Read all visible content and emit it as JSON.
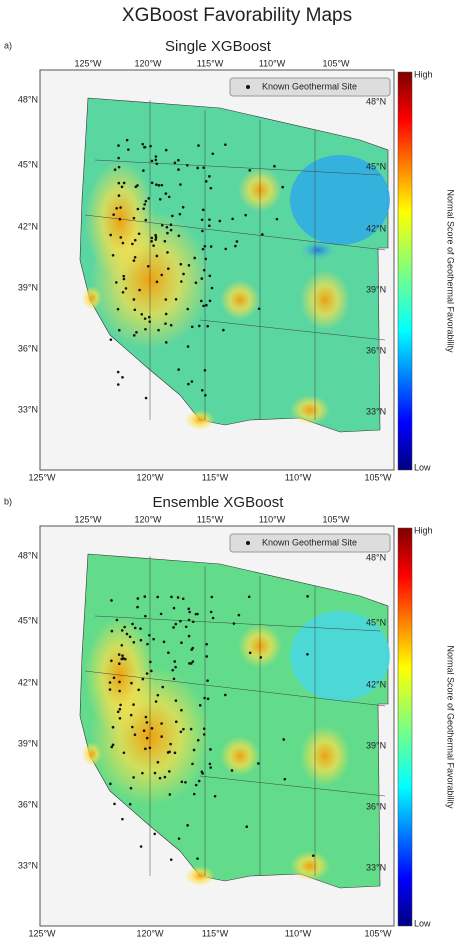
{
  "title": "XGBoost Favorability Maps",
  "panels": [
    {
      "label": "a)",
      "title": "Single XGBoost",
      "legend": "Known Geothermal Site",
      "colorbar": {
        "high": "High",
        "low": "Low",
        "title": "Normal Score of Geothermal Favorability"
      },
      "top_ticks": [
        "125°W",
        "120°W",
        "115°W",
        "110°W",
        "105°W"
      ],
      "bottom_ticks": [
        "125°W",
        "120°W",
        "115°W",
        "110°W",
        "105°W"
      ],
      "left_ticks": [
        "48°N",
        "45°N",
        "42°N",
        "39°N",
        "36°N",
        "33°N"
      ],
      "right_ticks": [
        "48°N",
        "45°N",
        "42°N",
        "39°N",
        "36°N",
        "33°N"
      ]
    },
    {
      "label": "b)",
      "title": "Ensemble XGBoost",
      "legend": "Known Geothermal Site",
      "colorbar": {
        "high": "High",
        "low": "Low",
        "title": "Normal Score of Geothermal Favorability"
      },
      "top_ticks": [
        "125°W",
        "120°W",
        "115°W",
        "110°W",
        "105°W"
      ],
      "bottom_ticks": [
        "125°W",
        "120°W",
        "115°W",
        "110°W",
        "105°W"
      ],
      "left_ticks": [
        "48°N",
        "45°N",
        "42°N",
        "39°N",
        "36°N",
        "33°N"
      ],
      "right_ticks": [
        "48°N",
        "45°N",
        "42°N",
        "39°N",
        "36°N",
        "33°N"
      ]
    }
  ]
}
